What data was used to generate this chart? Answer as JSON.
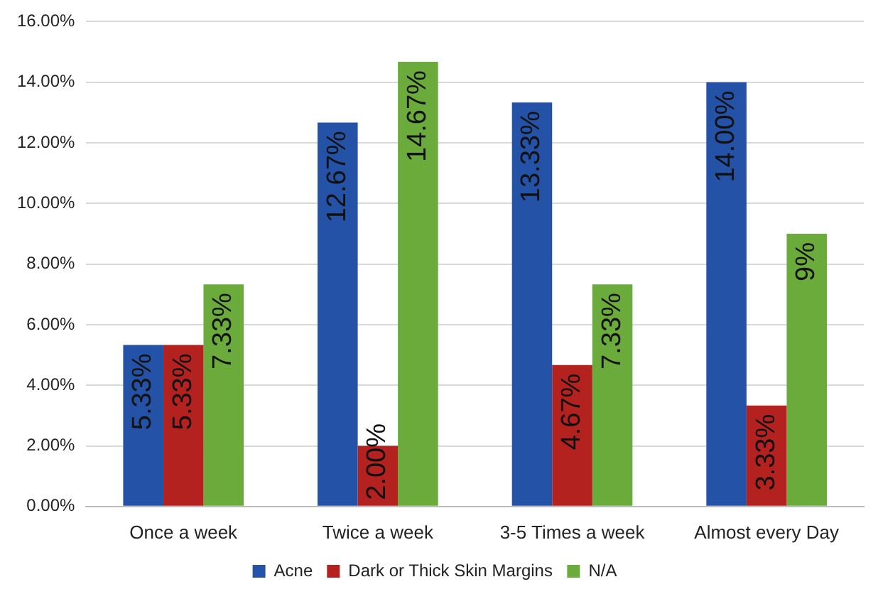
{
  "chart_data": {
    "type": "bar",
    "categories": [
      "Once a week",
      "Twice a week",
      "3-5 Times a week",
      "Almost every Day"
    ],
    "series": [
      {
        "name": "Acne",
        "color": "#2452a6",
        "values": [
          5.33,
          12.67,
          13.33,
          14.0
        ],
        "value_labels": [
          "5.33%",
          "12.67%",
          "13.33%",
          "14.00%"
        ]
      },
      {
        "name": "Dark or Thick Skin Margins",
        "color": "#b3221f",
        "values": [
          5.33,
          2.0,
          4.67,
          3.33
        ],
        "value_labels": [
          "5.33%",
          "2.00%",
          "4.67%",
          "3.33%"
        ]
      },
      {
        "name": "N/A",
        "color": "#6bab3c",
        "values": [
          7.33,
          14.67,
          7.33,
          9
        ],
        "value_labels": [
          "7.33%",
          "14.67%",
          "7.33%",
          "9%"
        ]
      }
    ],
    "ylim": [
      0,
      16
    ],
    "yticks": [
      {
        "value": 0,
        "label": "0.00%"
      },
      {
        "value": 2,
        "label": "2.00%"
      },
      {
        "value": 4,
        "label": "4.00%"
      },
      {
        "value": 6,
        "label": "6.00%"
      },
      {
        "value": 8,
        "label": "8.00%"
      },
      {
        "value": 10,
        "label": "10.00%"
      },
      {
        "value": 12,
        "label": "12.00%"
      },
      {
        "value": 14,
        "label": "14.00%"
      },
      {
        "value": 16,
        "label": "16.00%"
      }
    ],
    "grid": "y",
    "legend": "bottom"
  }
}
